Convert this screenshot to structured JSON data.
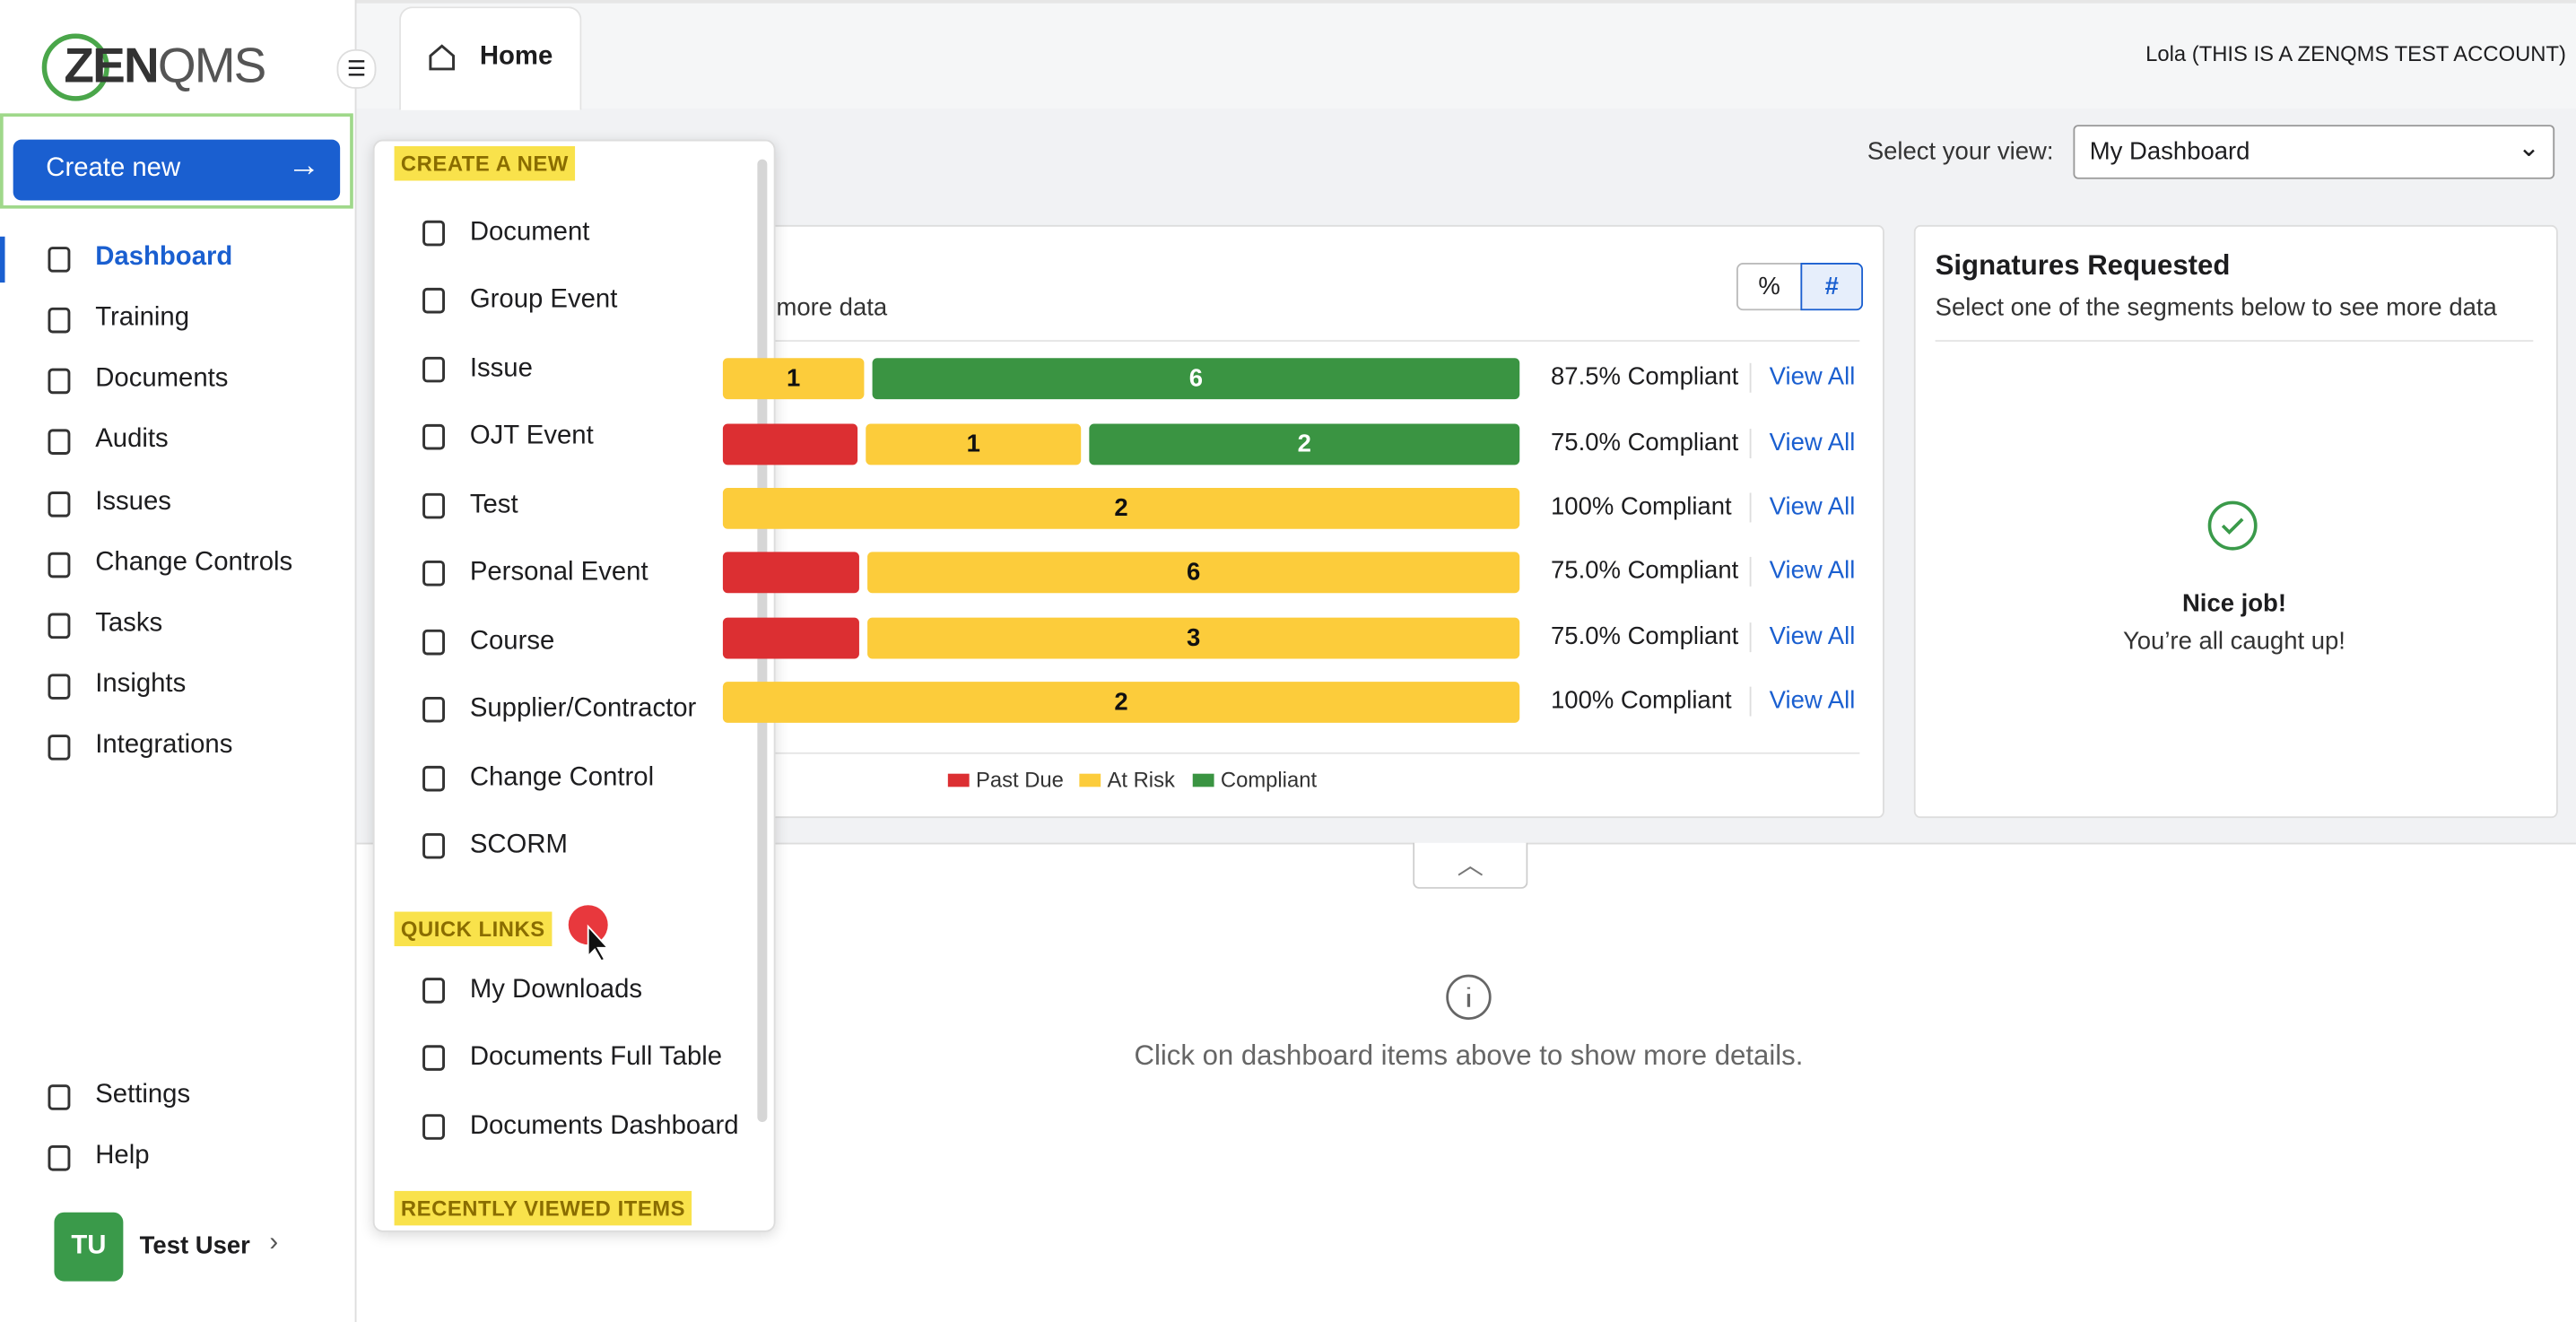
{
  "header": {
    "logo_zen": "ZEN",
    "logo_qms": "QMS",
    "tab": "Home",
    "account": "Lola (THIS IS A ZENQMS TEST ACCOUNT)"
  },
  "sidebar": {
    "create_button": "Create new",
    "nav": [
      "Dashboard",
      "Training",
      "Documents",
      "Audits",
      "Issues",
      "Change Controls",
      "Tasks",
      "Insights",
      "Integrations"
    ],
    "bottom": [
      "Settings",
      "Help"
    ],
    "user": {
      "initials": "TU",
      "name": "Test User"
    }
  },
  "view_select": {
    "label": "Select your view:",
    "value": "My Dashboard"
  },
  "training_card": {
    "subtitle_fragment": "e more data",
    "toggle": [
      "%",
      "#"
    ],
    "rows": [
      {
        "segments": [
          {
            "status": "at-risk",
            "value": 1
          },
          {
            "status": "compliant",
            "value": 6
          }
        ],
        "compliance": "87.5% Compliant",
        "link": "View All"
      },
      {
        "segments": [
          {
            "status": "past-due"
          },
          {
            "status": "at-risk",
            "value": 1
          },
          {
            "status": "compliant",
            "value": 2
          }
        ],
        "compliance": "75.0% Compliant",
        "link": "View All"
      },
      {
        "segments": [
          {
            "status": "at-risk",
            "value": 2
          }
        ],
        "compliance": "100% Compliant",
        "link": "View All"
      },
      {
        "segments": [
          {
            "status": "past-due"
          },
          {
            "status": "at-risk",
            "value": 6
          }
        ],
        "compliance": "75.0% Compliant",
        "link": "View All"
      },
      {
        "segments": [
          {
            "status": "past-due"
          },
          {
            "status": "at-risk",
            "value": 3
          }
        ],
        "compliance": "75.0% Compliant",
        "link": "View All"
      },
      {
        "segments": [
          {
            "status": "at-risk",
            "value": 2
          }
        ],
        "compliance": "100% Compliant",
        "link": "View All"
      }
    ],
    "legend": [
      "Past Due",
      "At Risk",
      "Compliant"
    ]
  },
  "signatures_card": {
    "title": "Signatures Requested",
    "subtitle": "Select one of the segments below to see more data",
    "message_title": "Nice job!",
    "message": "You’re all caught up!"
  },
  "details_hint": "Click on dashboard items above to show more details.",
  "menu": {
    "create_heading": "CREATE A NEW",
    "create_items": [
      "Document",
      "Group Event",
      "Issue",
      "OJT Event",
      "Test",
      "Personal Event",
      "Course",
      "Supplier/Contractor",
      "Change Control",
      "SCORM"
    ],
    "quick_heading": "QUICK LINKS",
    "quick_items": [
      "My Downloads",
      "Documents Full Table",
      "Documents Dashboard"
    ],
    "recent_heading": "RECENTLY VIEWED ITEMS"
  }
}
